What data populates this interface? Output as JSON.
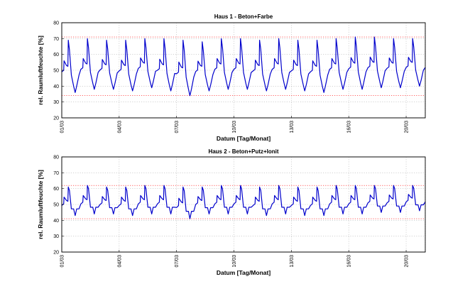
{
  "chart_data": [
    {
      "type": "line",
      "title": "Haus 1 - Beton+Farbe",
      "xlabel": "Datum [Tag/Monat]",
      "ylabel": "rel. Raumluftfeuchte [%]",
      "ylim": [
        20,
        80
      ],
      "yticks": [
        20,
        30,
        40,
        50,
        60,
        70,
        80
      ],
      "xlim": [
        0,
        19
      ],
      "xticks": [
        0,
        3,
        6,
        9,
        12,
        15,
        18
      ],
      "xtick_labels": [
        "01/03",
        "04/03",
        "07/03",
        "10/03",
        "13/03",
        "16/03",
        "20/03"
      ],
      "grid": true,
      "reference_lines": [
        71,
        34
      ],
      "colors": {
        "series": "#0000cc",
        "reference": "#ff0000",
        "grid": "#b8b8b8"
      },
      "series": [
        {
          "daily_profile": {
            "start": 50,
            "jump": 57,
            "dip": 54,
            "peak": 70,
            "trough": 37
          },
          "daily_peaks": [
            69,
            70,
            69,
            69,
            70,
            70,
            69,
            68,
            70,
            70,
            69,
            70,
            69,
            69,
            70,
            71,
            71,
            70,
            70
          ],
          "daily_troughs": [
            36,
            38,
            38,
            37,
            39,
            37,
            34,
            37,
            38,
            38,
            37,
            38,
            37,
            36,
            38,
            38,
            39,
            39,
            40
          ]
        }
      ]
    },
    {
      "type": "line",
      "title": "Haus 2 - Beton+Putz+Ionit",
      "xlabel": "Datum [Tag/Monat]",
      "ylabel": "rel. Raumluftfeuchte [%]",
      "ylim": [
        20,
        80
      ],
      "yticks": [
        20,
        30,
        40,
        50,
        60,
        70,
        80
      ],
      "xlim": [
        0,
        19
      ],
      "xticks": [
        0,
        3,
        6,
        9,
        12,
        15,
        18
      ],
      "xtick_labels": [
        "01/03",
        "04/03",
        "07/03",
        "10/03",
        "13/03",
        "16/03",
        "20/03"
      ],
      "grid": true,
      "reference_lines": [
        62,
        41
      ],
      "colors": {
        "series": "#0000cc",
        "reference": "#ff0000",
        "grid": "#b8b8b8"
      },
      "series": [
        {
          "daily_profile": {
            "start": 50,
            "jump": 55,
            "dip": 53,
            "peak": 61,
            "trough": 44
          },
          "daily_peaks": [
            61,
            62,
            61,
            61,
            62,
            62,
            61,
            61,
            62,
            62,
            61,
            62,
            61,
            61,
            62,
            62,
            62,
            62,
            62
          ],
          "daily_troughs": [
            43,
            44,
            44,
            43,
            44,
            44,
            41,
            44,
            44,
            44,
            43,
            44,
            43,
            43,
            44,
            44,
            45,
            45,
            46
          ]
        }
      ]
    }
  ]
}
